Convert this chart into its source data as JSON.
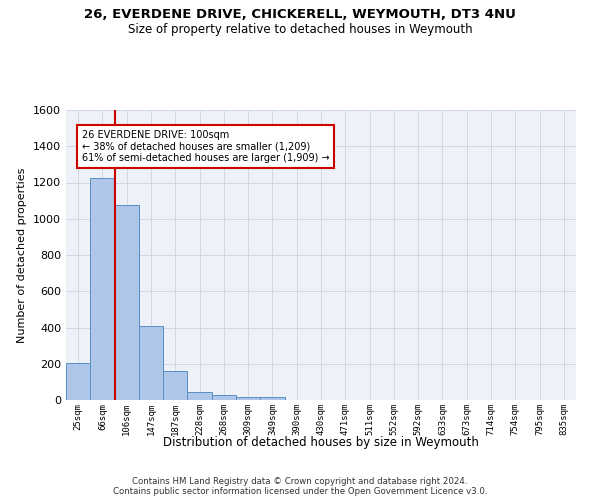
{
  "title1": "26, EVERDENE DRIVE, CHICKERELL, WEYMOUTH, DT3 4NU",
  "title2": "Size of property relative to detached houses in Weymouth",
  "xlabel": "Distribution of detached houses by size in Weymouth",
  "ylabel": "Number of detached properties",
  "footer1": "Contains HM Land Registry data © Crown copyright and database right 2024.",
  "footer2": "Contains public sector information licensed under the Open Government Licence v3.0.",
  "bar_labels": [
    "25sqm",
    "66sqm",
    "106sqm",
    "147sqm",
    "187sqm",
    "228sqm",
    "268sqm",
    "309sqm",
    "349sqm",
    "390sqm",
    "430sqm",
    "471sqm",
    "511sqm",
    "552sqm",
    "592sqm",
    "633sqm",
    "673sqm",
    "714sqm",
    "754sqm",
    "795sqm",
    "835sqm"
  ],
  "bar_values": [
    205,
    1225,
    1075,
    410,
    160,
    45,
    28,
    18,
    15,
    0,
    0,
    0,
    0,
    0,
    0,
    0,
    0,
    0,
    0,
    0,
    0
  ],
  "bar_color": "#aec6e8",
  "bar_edge_color": "#5a8fc0",
  "ylim": [
    0,
    1600
  ],
  "yticks": [
    0,
    200,
    400,
    600,
    800,
    1000,
    1200,
    1400,
    1600
  ],
  "property_line_x": 1.5,
  "property_line_color": "#cc0000",
  "annotation_text": "26 EVERDENE DRIVE: 100sqm\n← 38% of detached houses are smaller (1,209)\n61% of semi-detached houses are larger (1,909) →",
  "annotation_box_color": "#cc0000",
  "grid_color": "#d0d8e8",
  "bg_color": "#eef2f8"
}
